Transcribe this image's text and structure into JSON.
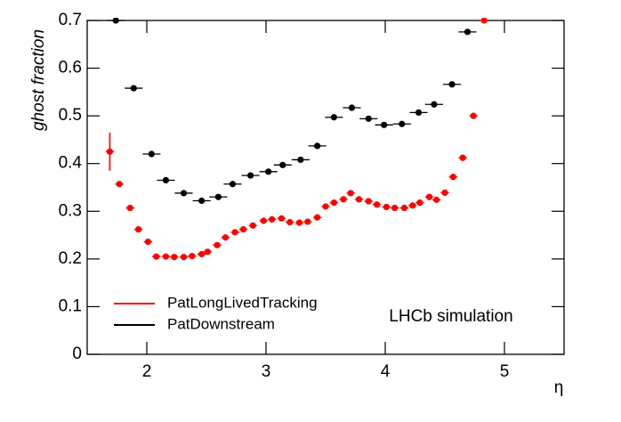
{
  "chart_data": {
    "type": "scatter",
    "x_label": "η",
    "y_label": "ghost fraction",
    "annotation": "LHCb simulation",
    "xlim": [
      1.5,
      5.5
    ],
    "xticks": [
      2,
      3,
      4,
      5
    ],
    "ylim": [
      0,
      0.7
    ],
    "yticks": [
      0,
      0.1,
      0.2,
      0.3,
      0.4,
      0.5,
      0.6,
      0.7
    ],
    "legend": "bottom-left",
    "series": [
      {
        "name": "PatLongLivedTracking",
        "color": "#ff0000",
        "x_error": 0.035,
        "x": [
          1.69,
          1.77,
          1.86,
          1.93,
          2.01,
          2.08,
          2.16,
          2.23,
          2.31,
          2.38,
          2.46,
          2.51,
          2.59,
          2.66,
          2.74,
          2.81,
          2.89,
          2.98,
          3.05,
          3.13,
          3.2,
          3.28,
          3.35,
          3.43,
          3.5,
          3.57,
          3.65,
          3.71,
          3.78,
          3.86,
          3.93,
          4.01,
          4.08,
          4.16,
          4.23,
          4.29,
          4.37,
          4.43,
          4.5,
          4.57,
          4.65,
          4.74,
          4.83
        ],
        "values": [
          0.425,
          0.357,
          0.307,
          0.262,
          0.236,
          0.205,
          0.205,
          0.204,
          0.204,
          0.206,
          0.21,
          0.215,
          0.229,
          0.245,
          0.256,
          0.262,
          0.27,
          0.28,
          0.283,
          0.285,
          0.277,
          0.276,
          0.278,
          0.287,
          0.31,
          0.318,
          0.325,
          0.338,
          0.325,
          0.321,
          0.314,
          0.309,
          0.307,
          0.307,
          0.312,
          0.318,
          0.33,
          0.324,
          0.339,
          0.372,
          0.412,
          0.5,
          0.7
        ],
        "y_errors": [
          0.04
        ]
      },
      {
        "name": "PatDownstream",
        "color": "#000000",
        "x_error": 0.075,
        "x": [
          1.74,
          1.89,
          2.04,
          2.16,
          2.31,
          2.46,
          2.6,
          2.72,
          2.87,
          3.02,
          3.14,
          3.29,
          3.43,
          3.57,
          3.72,
          3.86,
          3.99,
          4.14,
          4.28,
          4.41,
          4.56,
          4.69
        ],
        "values": [
          0.7,
          0.558,
          0.42,
          0.365,
          0.338,
          0.322,
          0.33,
          0.357,
          0.375,
          0.383,
          0.397,
          0.408,
          0.437,
          0.497,
          0.517,
          0.494,
          0.481,
          0.483,
          0.507,
          0.524,
          0.566,
          0.676
        ]
      }
    ]
  }
}
